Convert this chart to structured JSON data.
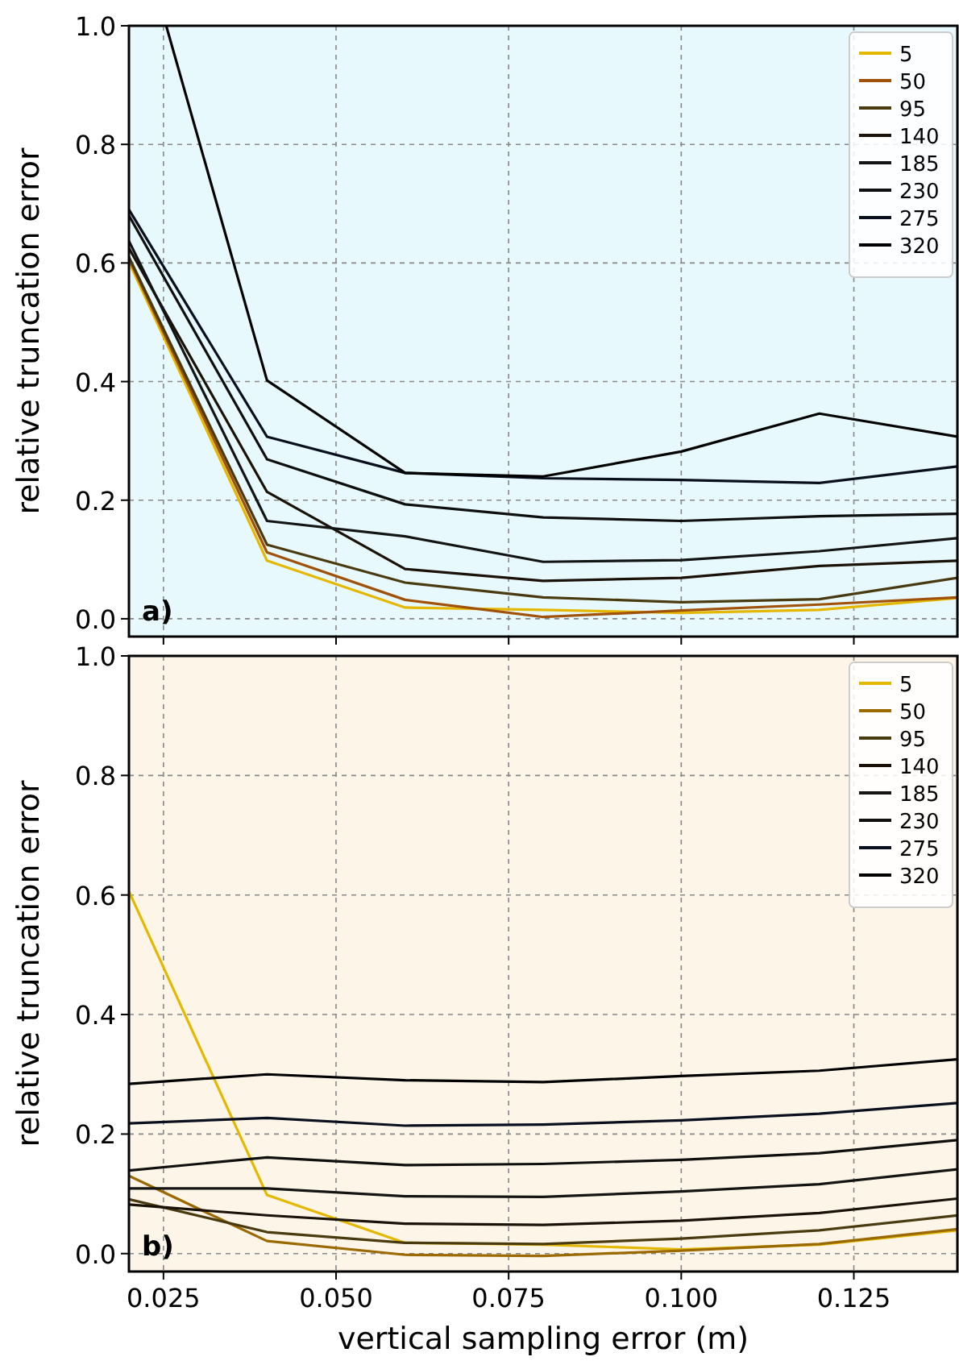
{
  "chart_data": [
    {
      "type": "line",
      "ylabel": "relative truncation error",
      "x": [
        0.02,
        0.04,
        0.06,
        0.08,
        0.1,
        0.12,
        0.14
      ],
      "xlim": [
        0.02,
        0.14
      ],
      "ylim": [
        -0.03,
        1.0
      ],
      "xticks": [
        {
          "value": 0.025,
          "label": null
        },
        {
          "value": 0.05,
          "label": null
        },
        {
          "value": 0.075,
          "label": null
        },
        {
          "value": 0.1,
          "label": null
        },
        {
          "value": 0.125,
          "label": null
        }
      ],
      "yticks": [
        {
          "value": 0,
          "label": "0.0"
        },
        {
          "value": 0.2,
          "label": "0.2"
        },
        {
          "value": 0.4,
          "label": "0.4"
        },
        {
          "value": 0.6,
          "label": "0.6"
        },
        {
          "value": 0.8,
          "label": "0.8"
        },
        {
          "value": 1.0,
          "label": "1.0"
        }
      ],
      "tick_labels": "y",
      "grid": true,
      "legend": "top right",
      "marker": "none",
      "line_style": "solid",
      "annotations": [
        "a)"
      ],
      "series": [
        {
          "name": "5",
          "color": "#e5b800",
          "values": [
            0.602,
            0.098,
            0.019,
            0.015,
            0.01,
            0.015,
            0.035
          ]
        },
        {
          "name": "50",
          "color": "#a0520a",
          "values": [
            0.607,
            0.112,
            0.032,
            0.003,
            0.014,
            0.024,
            0.036
          ]
        },
        {
          "name": "95",
          "color": "#4a3a10",
          "values": [
            0.61,
            0.125,
            0.061,
            0.036,
            0.028,
            0.033,
            0.069
          ]
        },
        {
          "name": "140",
          "color": "#1a1208",
          "values": [
            0.625,
            0.214,
            0.084,
            0.064,
            0.069,
            0.089,
            0.098
          ]
        },
        {
          "name": "185",
          "color": "#141414",
          "values": [
            0.637,
            0.165,
            0.139,
            0.096,
            0.099,
            0.114,
            0.136
          ]
        },
        {
          "name": "230",
          "color": "#0f0f0f",
          "values": [
            0.68,
            0.269,
            0.193,
            0.171,
            0.165,
            0.173,
            0.177
          ]
        },
        {
          "name": "275",
          "color": "#0a0f1e",
          "values": [
            0.69,
            0.307,
            0.246,
            0.237,
            0.234,
            0.229,
            0.257
          ]
        },
        {
          "name": "320",
          "color": "#000000",
          "x": [
            0.0254,
            0.04,
            0.06,
            0.08,
            0.1,
            0.12,
            0.14
          ],
          "values": [
            1.0,
            0.402,
            0.246,
            0.24,
            0.282,
            0.346,
            0.307
          ]
        }
      ]
    },
    {
      "type": "line",
      "ylabel": "relative truncation error",
      "xlabel": "vertical sampling error (m)",
      "x": [
        0.02,
        0.04,
        0.06,
        0.08,
        0.1,
        0.12,
        0.14
      ],
      "xlim": [
        0.02,
        0.14
      ],
      "ylim": [
        -0.03,
        1.0
      ],
      "xticks": [
        {
          "value": 0.025,
          "label": "0.025"
        },
        {
          "value": 0.05,
          "label": "0.050"
        },
        {
          "value": 0.075,
          "label": "0.075"
        },
        {
          "value": 0.1,
          "label": "0.100"
        },
        {
          "value": 0.125,
          "label": "0.125"
        }
      ],
      "yticks": [
        {
          "value": 0,
          "label": "0.0"
        },
        {
          "value": 0.2,
          "label": "0.2"
        },
        {
          "value": 0.4,
          "label": "0.4"
        },
        {
          "value": 0.6,
          "label": "0.6"
        },
        {
          "value": 0.8,
          "label": "0.8"
        },
        {
          "value": 1.0,
          "label": "1.0"
        }
      ],
      "grid": true,
      "legend": "top right",
      "marker": "none",
      "line_style": "solid",
      "annotations": [
        "b)"
      ],
      "series": [
        {
          "name": "5",
          "color": "#e5b800",
          "values": [
            0.606,
            0.098,
            0.018,
            0.015,
            0.007,
            0.015,
            0.039
          ]
        },
        {
          "name": "50",
          "color": "#9a6a00",
          "values": [
            0.13,
            0.021,
            -0.002,
            -0.004,
            0.005,
            0.016,
            0.041
          ]
        },
        {
          "name": "95",
          "color": "#4a3a10",
          "values": [
            0.091,
            0.036,
            0.018,
            0.016,
            0.025,
            0.039,
            0.064
          ]
        },
        {
          "name": "140",
          "color": "#1a1208",
          "values": [
            0.082,
            0.064,
            0.05,
            0.048,
            0.055,
            0.068,
            0.092
          ]
        },
        {
          "name": "185",
          "color": "#141414",
          "values": [
            0.109,
            0.109,
            0.096,
            0.095,
            0.104,
            0.116,
            0.141
          ]
        },
        {
          "name": "230",
          "color": "#0f0f0f",
          "values": [
            0.139,
            0.161,
            0.148,
            0.15,
            0.157,
            0.168,
            0.19
          ]
        },
        {
          "name": "275",
          "color": "#0a0f1e",
          "values": [
            0.218,
            0.227,
            0.214,
            0.216,
            0.223,
            0.234,
            0.252
          ]
        },
        {
          "name": "320",
          "color": "#000000",
          "values": [
            0.284,
            0.3,
            0.29,
            0.287,
            0.297,
            0.306,
            0.325
          ]
        }
      ]
    }
  ]
}
